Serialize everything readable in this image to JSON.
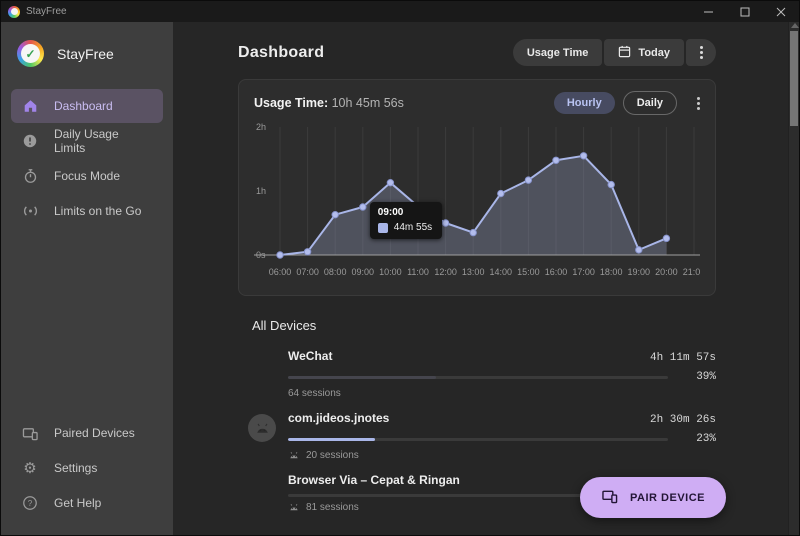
{
  "titlebar": {
    "app_name": "StayFree"
  },
  "sidebar": {
    "brand": "StayFree",
    "items": [
      {
        "label": "Dashboard",
        "icon": "home",
        "active": true
      },
      {
        "label": "Daily Usage Limits",
        "icon": "alert-circle",
        "active": false
      },
      {
        "label": "Focus Mode",
        "icon": "timer",
        "active": false
      },
      {
        "label": "Limits on the Go",
        "icon": "broadcast",
        "active": false
      }
    ],
    "footer_items": [
      {
        "label": "Paired Devices",
        "icon": "devices"
      },
      {
        "label": "Settings",
        "icon": "gear"
      },
      {
        "label": "Get Help",
        "icon": "help-circle"
      }
    ]
  },
  "header": {
    "title": "Dashboard",
    "buttons": {
      "usage_time": "Usage Time",
      "date": "Today"
    }
  },
  "usage_card": {
    "title_label": "Usage Time:",
    "title_value": "10h 45m 56s",
    "toggle": {
      "options": [
        "Hourly",
        "Daily"
      ],
      "selected": "Hourly"
    }
  },
  "chart_data": {
    "type": "area",
    "title": "Usage Time",
    "x_categories": [
      "06:00",
      "07:00",
      "08:00",
      "09:00",
      "10:00",
      "11:00",
      "12:00",
      "13:00",
      "14:00",
      "15:00",
      "16:00",
      "17:00",
      "18:00",
      "19:00",
      "20:00",
      "21:00"
    ],
    "series": [
      {
        "name": "usage_hours",
        "values": [
          0,
          0.05,
          0.63,
          0.75,
          1.13,
          0.76,
          0.5,
          0.35,
          0.96,
          1.17,
          1.48,
          1.55,
          1.1,
          0.08,
          0.26
        ]
      }
    ],
    "unit": "hours",
    "ylim": [
      0,
      2
    ],
    "yticks": [
      {
        "value": 0,
        "label": "0s"
      },
      {
        "value": 1,
        "label": "1h"
      },
      {
        "value": 2,
        "label": "2h"
      }
    ],
    "grid": "vertical",
    "legend": false,
    "tooltip": {
      "category": "09:00",
      "anchor_index": 3,
      "value_label": "44m 55s"
    }
  },
  "devices": {
    "heading": "All Devices",
    "rows": [
      {
        "name": "WeChat",
        "time": "4h 11m 57s",
        "percent": "39%",
        "bar_fill_percent": 39,
        "bar_color": "#45454d",
        "sessions": "64 sessions",
        "has_avatar": false,
        "sessions_icon": false
      },
      {
        "name": "com.jideos.jnotes",
        "time": "2h 30m 26s",
        "percent": "23%",
        "bar_fill_percent": 23,
        "bar_color": "#a9b6e8",
        "sessions": "20 sessions",
        "has_avatar": true,
        "sessions_icon": true
      },
      {
        "name": "Browser Via – Cepat & Ringan",
        "time": "",
        "percent": "",
        "bar_fill_percent": 0,
        "bar_color": "#45454d",
        "sessions": "81 sessions",
        "has_avatar": false,
        "sessions_icon": true
      }
    ]
  },
  "fab": {
    "label": "PAIR DEVICE"
  },
  "colors": {
    "accent_line": "#a9b6e8",
    "area_fill": "rgba(148,159,192,0.33)",
    "fab_bg": "#cfadf4",
    "active_nav_bg": "#5a5263",
    "card_bg": "#2d2d2d",
    "sidebar_bg": "#3e3e3e",
    "main_bg": "#262626"
  }
}
